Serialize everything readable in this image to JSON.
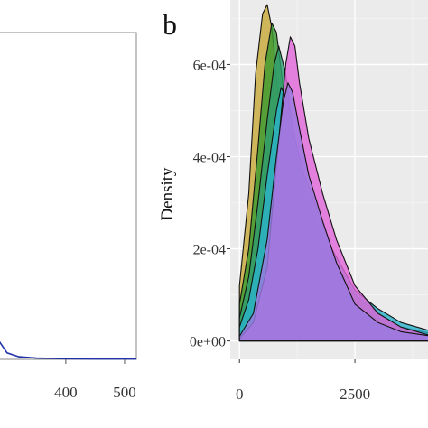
{
  "figure": {
    "panel_b_label": "b"
  },
  "chart_data": [
    {
      "panel": "a",
      "type": "line",
      "xlabel": "",
      "ylabel": "",
      "xlim": [
        285,
        520
      ],
      "x_ticks": [
        400,
        500
      ],
      "x_tick_labels": [
        "400",
        "500"
      ],
      "series": [
        {
          "color": "#2233aa",
          "x": [
            285,
            300,
            320,
            350,
            400,
            450,
            500,
            520
          ],
          "y": [
            0.06,
            0.02,
            0.008,
            0.004,
            0.002,
            0.001,
            0.001,
            0.001
          ]
        }
      ],
      "ylim": [
        0,
        1
      ],
      "grid": false
    },
    {
      "panel": "b",
      "type": "area",
      "xlabel": "",
      "ylabel": "Density",
      "xlim": [
        -200,
        4200
      ],
      "ylim": [
        -4e-05,
        0.00074
      ],
      "x_ticks": [
        0,
        2500
      ],
      "x_tick_labels": [
        "0",
        "2500"
      ],
      "y_ticks": [
        0,
        0.0002,
        0.0004,
        0.0006
      ],
      "y_tick_labels": [
        "0e+00",
        "2e-04",
        "4e-04",
        "6e-04"
      ],
      "grid": true,
      "series": [
        {
          "color": "#c9a93a",
          "x": [
            0,
            200,
            350,
            500,
            600,
            700,
            850,
            1000,
            1200,
            1500,
            2000,
            2500,
            3000,
            3500,
            4200
          ],
          "y": [
            0.00012,
            0.00032,
            0.00058,
            0.00071,
            0.00073,
            0.00068,
            0.00052,
            0.0004,
            0.00032,
            0.00025,
            0.00015,
            9e-05,
            5e-05,
            3e-05,
            1.5e-05
          ]
        },
        {
          "color": "#3a9a30",
          "x": [
            0,
            200,
            400,
            550,
            700,
            800,
            950,
            1100,
            1300,
            1600,
            2000,
            2500,
            3000,
            3500,
            4200
          ],
          "y": [
            8e-05,
            0.0002,
            0.00042,
            0.0006,
            0.00069,
            0.00067,
            0.00055,
            0.00042,
            0.00033,
            0.00025,
            0.00016,
            9e-05,
            5e-05,
            3e-05,
            1.5e-05
          ]
        },
        {
          "color": "#2f9e6e",
          "x": [
            0,
            200,
            400,
            600,
            750,
            850,
            1000,
            1150,
            1350,
            1600,
            2000,
            2500,
            3000,
            3500,
            4200
          ],
          "y": [
            5e-05,
            0.00014,
            0.0003,
            0.00048,
            0.0006,
            0.00064,
            0.00058,
            0.00046,
            0.00036,
            0.00028,
            0.00018,
            0.0001,
            6e-05,
            3e-05,
            1.5e-05
          ]
        },
        {
          "color": "#2bb2c8",
          "x": [
            0,
            200,
            400,
            600,
            800,
            900,
            1050,
            1200,
            1400,
            1700,
            2000,
            2500,
            3000,
            3500,
            4200
          ],
          "y": [
            3e-05,
            9e-05,
            0.0002,
            0.00036,
            0.0005,
            0.00055,
            0.00052,
            0.00044,
            0.00036,
            0.00028,
            0.0002,
            0.00011,
            7e-05,
            4e-05,
            2e-05
          ]
        },
        {
          "color": "#e066d8",
          "x": [
            0,
            300,
            600,
            800,
            1000,
            1100,
            1200,
            1300,
            1500,
            1800,
            2100,
            2500,
            3000,
            3500,
            4200
          ],
          "y": [
            5e-06,
            4e-05,
            0.00016,
            0.00038,
            0.0006,
            0.00066,
            0.00064,
            0.00056,
            0.00044,
            0.00032,
            0.00022,
            0.00012,
            6e-05,
            3e-05,
            1e-05
          ]
        },
        {
          "color": "#9a7ae0",
          "x": [
            0,
            300,
            600,
            800,
            950,
            1050,
            1150,
            1300,
            1500,
            1800,
            2100,
            2500,
            3000,
            3500,
            4200
          ],
          "y": [
            1e-05,
            6e-05,
            0.00022,
            0.0004,
            0.00052,
            0.00056,
            0.00054,
            0.00046,
            0.00036,
            0.00026,
            0.00017,
            8e-05,
            4e-05,
            2e-05,
            1e-05
          ]
        }
      ]
    }
  ]
}
